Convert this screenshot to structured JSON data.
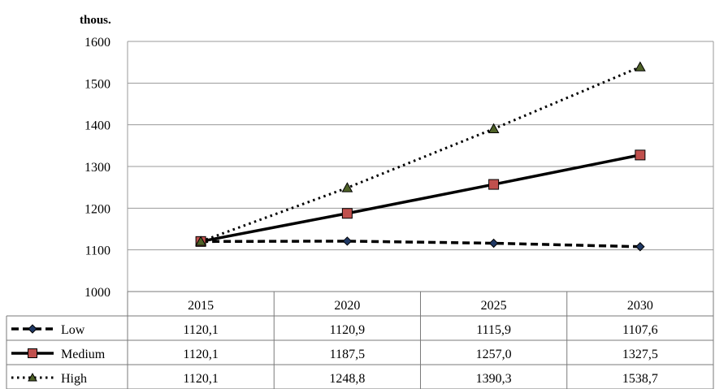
{
  "chart_data": {
    "type": "line",
    "unit_label": "thous.",
    "categories": [
      "2015",
      "2020",
      "2025",
      "2030"
    ],
    "ylim": [
      1000,
      1600
    ],
    "yticks": [
      "1000",
      "1100",
      "1200",
      "1300",
      "1400",
      "1500",
      "1600"
    ],
    "grid": true,
    "legend_placement": "data-table-left",
    "series": [
      {
        "name": "Low",
        "values": [
          1120.1,
          1120.9,
          1115.9,
          1107.6
        ],
        "labels": [
          "1120,1",
          "1120,9",
          "1115,9",
          "1107,6"
        ],
        "line_style": "dashed",
        "marker": "diamond",
        "marker_color": "#1f3864"
      },
      {
        "name": "Medium",
        "values": [
          1120.1,
          1187.5,
          1257.0,
          1327.5
        ],
        "labels": [
          "1120,1",
          "1187,5",
          "1257,0",
          "1327,5"
        ],
        "line_style": "solid",
        "marker": "square",
        "marker_color": "#c0504d"
      },
      {
        "name": "High",
        "values": [
          1120.1,
          1248.8,
          1390.3,
          1538.7
        ],
        "labels": [
          "1120,1",
          "1248,8",
          "1390,3",
          "1538,7"
        ],
        "line_style": "dotted",
        "marker": "triangle",
        "marker_color": "#4f6228"
      }
    ]
  }
}
